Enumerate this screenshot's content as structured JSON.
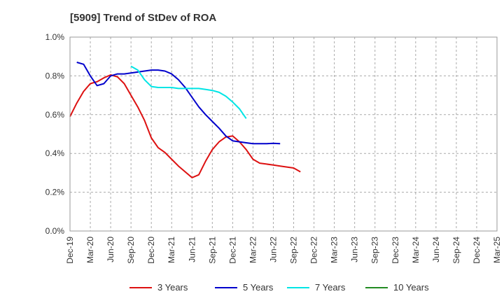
{
  "chart_data": {
    "type": "line",
    "title": "[5909]  Trend of StDev of ROA",
    "xlabel": "",
    "ylabel": "",
    "y_tick_labels": [
      "0.0%",
      "0.2%",
      "0.4%",
      "0.6%",
      "0.8%",
      "1.0%"
    ],
    "x_tick_labels": [
      "Dec-19",
      "Mar-20",
      "Jun-20",
      "Sep-20",
      "Dec-20",
      "Mar-21",
      "Jun-21",
      "Sep-21",
      "Dec-21",
      "Mar-22",
      "Jun-22",
      "Sep-22",
      "Dec-22",
      "Mar-23",
      "Jun-23",
      "Sep-23",
      "Dec-23",
      "Mar-24",
      "Jun-24",
      "Sep-24",
      "Dec-24",
      "Mar-25"
    ],
    "ylim": [
      0,
      1.0
    ],
    "grid": "horizontal dashed",
    "legend_position": "bottom",
    "series": [
      {
        "name": "3 Years",
        "color": "#dd1111",
        "start_index": 0,
        "values": [
          0.59,
          0.66,
          0.72,
          0.76,
          0.77,
          0.79,
          0.805,
          0.795,
          0.76,
          0.7,
          0.64,
          0.57,
          0.48,
          0.43,
          0.405,
          0.37,
          0.335,
          0.305,
          0.275,
          0.29,
          0.36,
          0.42,
          0.46,
          0.485,
          0.49,
          0.46,
          0.42,
          0.37,
          0.35,
          0.345,
          0.34,
          0.335,
          0.33,
          0.325,
          0.305
        ]
      },
      {
        "name": "5 Years",
        "color": "#0000cc",
        "start_index": 1,
        "values": [
          0.87,
          0.86,
          0.8,
          0.75,
          0.76,
          0.8,
          0.81,
          0.81,
          0.815,
          0.82,
          0.825,
          0.83,
          0.83,
          0.825,
          0.81,
          0.78,
          0.74,
          0.69,
          0.64,
          0.6,
          0.565,
          0.53,
          0.49,
          0.465,
          0.46,
          0.455,
          0.45,
          0.45,
          0.45,
          0.452,
          0.45
        ]
      },
      {
        "name": "7 Years",
        "color": "#00e5e5",
        "start_index": 9,
        "values": [
          0.85,
          0.83,
          0.78,
          0.745,
          0.74,
          0.74,
          0.74,
          0.735,
          0.735,
          0.735,
          0.735,
          0.73,
          0.725,
          0.715,
          0.695,
          0.665,
          0.63,
          0.58
        ]
      },
      {
        "name": "10 Years",
        "color": "#228b22",
        "start_index": 0,
        "values": []
      }
    ]
  }
}
